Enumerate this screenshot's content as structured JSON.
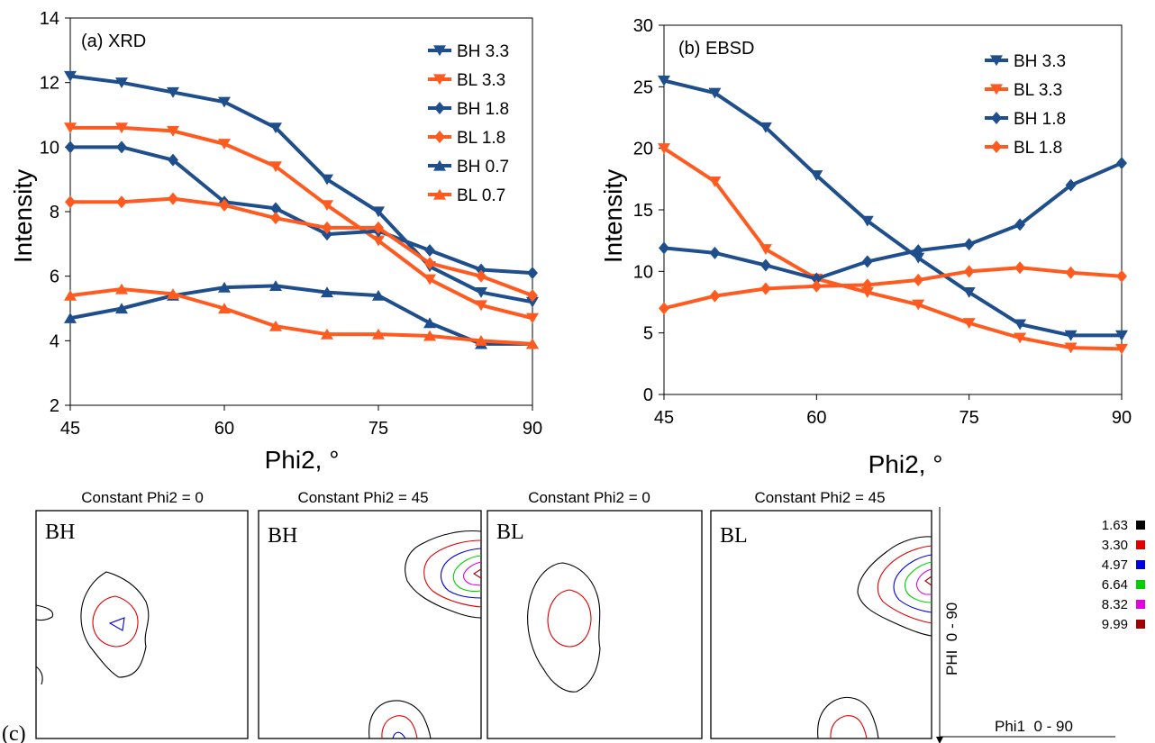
{
  "colors": {
    "blue": "#1f4e8c",
    "orange": "#ff5a1f"
  },
  "chart_data": [
    {
      "type": "line",
      "panel_label": "(a) XRD",
      "xlabel": "Phi2, °",
      "ylabel": "Intensity",
      "xlim": [
        45,
        90
      ],
      "ylim": [
        2,
        14
      ],
      "xticks": [
        45,
        60,
        75,
        90
      ],
      "yticks": [
        2,
        4,
        6,
        8,
        10,
        12,
        14
      ],
      "legend_position": "top-right",
      "x": [
        45,
        50,
        55,
        60,
        65,
        70,
        75,
        80,
        85,
        90
      ],
      "series": [
        {
          "name": "BH 3.3",
          "color": "#1f4e8c",
          "marker": "triangle-down",
          "values": [
            12.2,
            12.0,
            11.7,
            11.4,
            10.6,
            9.0,
            8.0,
            6.3,
            5.5,
            5.2
          ]
        },
        {
          "name": "BL 3.3",
          "color": "#ff5a1f",
          "marker": "triangle-down",
          "values": [
            10.6,
            10.6,
            10.5,
            10.1,
            9.4,
            8.2,
            7.1,
            5.9,
            5.1,
            4.7
          ]
        },
        {
          "name": "BH 1.8",
          "color": "#1f4e8c",
          "marker": "diamond",
          "values": [
            10.0,
            10.0,
            9.6,
            8.3,
            8.1,
            7.3,
            7.4,
            6.8,
            6.2,
            6.1
          ]
        },
        {
          "name": "BL 1.8",
          "color": "#ff5a1f",
          "marker": "diamond",
          "values": [
            8.3,
            8.3,
            8.4,
            8.2,
            7.8,
            7.5,
            7.5,
            6.4,
            6.0,
            5.4
          ]
        },
        {
          "name": "BH 0.7",
          "color": "#1f4e8c",
          "marker": "triangle-up",
          "values": [
            4.7,
            5.0,
            5.4,
            5.65,
            5.7,
            5.5,
            5.4,
            4.55,
            3.9,
            3.9
          ]
        },
        {
          "name": "BL 0.7",
          "color": "#ff5a1f",
          "marker": "triangle-up",
          "values": [
            5.4,
            5.6,
            5.45,
            5.0,
            4.45,
            4.2,
            4.2,
            4.15,
            4.0,
            3.9
          ]
        }
      ]
    },
    {
      "type": "line",
      "panel_label": "(b) EBSD",
      "xlabel": "Phi2, °",
      "ylabel": "Intensity",
      "xlim": [
        45,
        90
      ],
      "ylim": [
        0,
        30
      ],
      "xticks": [
        45,
        60,
        75,
        90
      ],
      "yticks": [
        0,
        5,
        10,
        15,
        20,
        25,
        30
      ],
      "legend_position": "top-right",
      "x": [
        45,
        50,
        55,
        60,
        65,
        70,
        75,
        80,
        85,
        90
      ],
      "series": [
        {
          "name": "BH 3.3",
          "color": "#1f4e8c",
          "marker": "triangle-down",
          "values": [
            25.5,
            24.5,
            21.7,
            17.8,
            14.1,
            11.1,
            8.3,
            5.7,
            4.8,
            4.8
          ]
        },
        {
          "name": "BL 3.3",
          "color": "#ff5a1f",
          "marker": "triangle-down",
          "values": [
            20.0,
            17.3,
            11.8,
            9.4,
            8.3,
            7.3,
            5.8,
            4.6,
            3.8,
            3.7
          ]
        },
        {
          "name": "BH 1.8",
          "color": "#1f4e8c",
          "marker": "diamond",
          "values": [
            11.9,
            11.5,
            10.5,
            9.4,
            10.8,
            11.7,
            12.2,
            13.8,
            17.0,
            18.8
          ]
        },
        {
          "name": "BL 1.8",
          "color": "#ff5a1f",
          "marker": "diamond",
          "values": [
            7.0,
            8.0,
            8.6,
            8.8,
            8.9,
            9.3,
            10.0,
            10.3,
            9.9,
            9.6
          ]
        }
      ]
    }
  ],
  "odf_panel": {
    "label": "(c)",
    "sections": [
      {
        "title": "Constant Phi2 = 0",
        "sample": "BH"
      },
      {
        "title": "Constant Phi2 = 45",
        "sample": "BH"
      },
      {
        "title": "Constant Phi2 = 0",
        "sample": "BL"
      },
      {
        "title": "Constant Phi2 = 45",
        "sample": "BL"
      }
    ],
    "axis_vertical": "PHI  0 - 90",
    "axis_horizontal": "Phi1  0 - 90",
    "contour_levels": [
      {
        "value": "1.63",
        "color": "#000000"
      },
      {
        "value": "3.30",
        "color": "#e00000"
      },
      {
        "value": "4.97",
        "color": "#0000e0"
      },
      {
        "value": "6.64",
        "color": "#00d000"
      },
      {
        "value": "8.32",
        "color": "#e000e0"
      },
      {
        "value": "9.99",
        "color": "#a00000"
      }
    ]
  }
}
